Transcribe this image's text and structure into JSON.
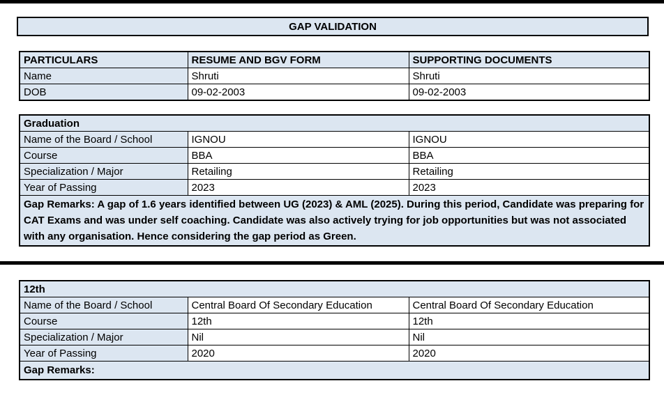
{
  "document": {
    "title": "GAP VALIDATION"
  },
  "colors": {
    "section_fill": "#dce6f1",
    "border": "#000000",
    "background": "#ffffff",
    "text": "#000000"
  },
  "personal_table": {
    "headers": [
      "PARTICULARS",
      "RESUME AND BGV FORM",
      "SUPPORTING DOCUMENTS"
    ],
    "rows": [
      {
        "label": "Name",
        "resume_value": "Shruti",
        "supporting_value": "Shruti"
      },
      {
        "label": "DOB",
        "resume_value": "09-02-2003",
        "supporting_value": "09-02-2003"
      }
    ]
  },
  "graduation_section": {
    "title": "Graduation",
    "rows": [
      {
        "label": "Name of the Board / School",
        "resume_value": "IGNOU",
        "supporting_value": "IGNOU"
      },
      {
        "label": "Course",
        "resume_value": "BBA",
        "supporting_value": "BBA"
      },
      {
        "label": "Specialization / Major",
        "resume_value": "Retailing",
        "supporting_value": "Retailing"
      },
      {
        "label": "Year of Passing",
        "resume_value": "2023",
        "supporting_value": "2023"
      }
    ],
    "gap_remarks": "Gap Remarks: A gap of 1.6 years identified between UG (2023) & AML (2025). During this period, Candidate was preparing for CAT Exams and was under self coaching. Candidate was also actively trying for job opportunities but was not associated with any organisation. Hence considering the gap period as Green."
  },
  "twelfth_section": {
    "title": "12th",
    "rows": [
      {
        "label": "Name of the Board / School",
        "resume_value": "Central Board Of Secondary Education",
        "supporting_value": "Central Board Of Secondary Education"
      },
      {
        "label": "Course",
        "resume_value": "12th",
        "supporting_value": "12th"
      },
      {
        "label": "Specialization / Major",
        "resume_value": "Nil",
        "supporting_value": "Nil"
      },
      {
        "label": "Year of Passing",
        "resume_value": "2020",
        "supporting_value": "2020"
      }
    ],
    "gap_remarks": "Gap Remarks:"
  }
}
